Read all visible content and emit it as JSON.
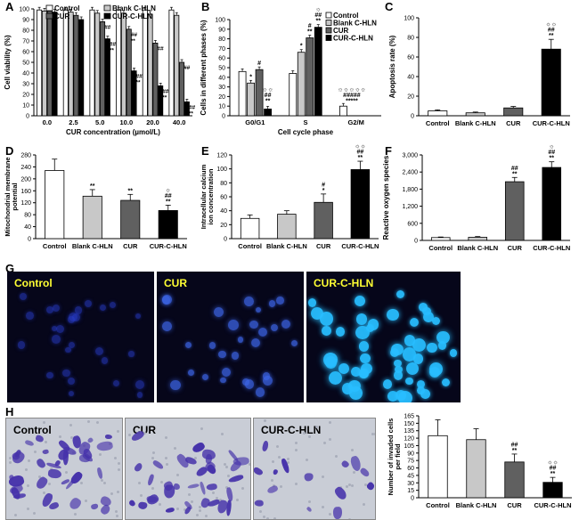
{
  "panels": {
    "A": "A",
    "B": "B",
    "C": "C",
    "D": "D",
    "E": "E",
    "F": "F",
    "G": "G",
    "H": "H"
  },
  "colors": {
    "white": "#ffffff",
    "light_gray": "#c8c8c8",
    "dark_gray": "#606060",
    "black": "#000000"
  },
  "chart_data": [
    {
      "id": "A",
      "type": "bar",
      "categories": [
        "0.0",
        "2.5",
        "5.0",
        "10.0",
        "20.0",
        "40.0"
      ],
      "xlabel": "CUR concentration (µmol/L)",
      "ylabel": "Cell viability (%)",
      "yticks": [
        "0",
        "10",
        "20",
        "30",
        "40",
        "50",
        "60",
        "70",
        "80",
        "90",
        "100"
      ],
      "ylim": [
        0,
        100
      ],
      "series": [
        {
          "name": "Control",
          "color": "#ffffff",
          "values": [
            99,
            99,
            99,
            99,
            99,
            99
          ]
        },
        {
          "name": "Blank C-HLN",
          "color": "#c8c8c8",
          "values": [
            98,
            97,
            96,
            96,
            95,
            94
          ]
        },
        {
          "name": "CUR",
          "color": "#606060",
          "values": [
            98,
            94,
            88,
            81,
            68,
            50
          ]
        },
        {
          "name": "CUR-C-HLN",
          "color": "#000000",
          "values": [
            97,
            90,
            72,
            42,
            28,
            13
          ]
        }
      ],
      "annotations": [
        {
          "category": 2,
          "series": 2,
          "text": "##"
        },
        {
          "category": 2,
          "series": 3,
          "text": "##\n**"
        },
        {
          "category": 3,
          "series": 2,
          "text": "##\n**"
        },
        {
          "category": 3,
          "series": 3,
          "text": "##\n**"
        },
        {
          "category": 4,
          "series": 2,
          "text": "##"
        },
        {
          "category": 4,
          "series": 3,
          "text": "##\n**"
        },
        {
          "category": 5,
          "series": 2,
          "text": "##"
        },
        {
          "category": 5,
          "series": 3,
          "text": "##\n**"
        }
      ]
    },
    {
      "id": "B",
      "type": "bar",
      "categories": [
        "G0/G1",
        "S",
        "G2/M"
      ],
      "xlabel": "Cell cycle phase",
      "ylabel": "Cells in different phases (%)",
      "yticks": [
        "0",
        "10",
        "20",
        "30",
        "40",
        "50",
        "60",
        "70",
        "80",
        "90",
        "100"
      ],
      "ylim": [
        0,
        100
      ],
      "series": [
        {
          "name": "Control",
          "color": "#ffffff",
          "values": [
            46,
            44,
            10
          ]
        },
        {
          "name": "Blank C-HLN",
          "color": "#c8c8c8",
          "values": [
            34,
            66,
            0
          ]
        },
        {
          "name": "CUR",
          "color": "#606060",
          "values": [
            48,
            81,
            0
          ]
        },
        {
          "name": "CUR-C-HLN",
          "color": "#000000",
          "values": [
            7,
            92,
            0
          ]
        }
      ],
      "annotations": [
        {
          "category": 0,
          "series": 1,
          "text": "*"
        },
        {
          "category": 0,
          "series": 2,
          "text": "#"
        },
        {
          "category": 0,
          "series": 3,
          "text": "☼☼\n##\n**"
        },
        {
          "category": 1,
          "series": 1,
          "text": "*"
        },
        {
          "category": 1,
          "series": 2,
          "text": "#\n**"
        },
        {
          "category": 1,
          "series": 3,
          "text": "☼\n##\n**"
        },
        {
          "category": 2,
          "series": 1,
          "text": "☼☼☼☼☼\n#####\n*****"
        }
      ]
    },
    {
      "id": "C",
      "type": "bar",
      "categories": [
        "Control",
        "Blank C-HLN",
        "CUR",
        "CUR-C-HLN"
      ],
      "ylabel": "Apoptosis rate (%)",
      "yticks": [
        "0",
        "20",
        "40",
        "60",
        "80",
        "100"
      ],
      "ylim": [
        0,
        100
      ],
      "values": [
        5,
        3,
        8,
        68
      ],
      "errors": [
        1,
        0.8,
        1.5,
        10
      ],
      "colors": [
        "#ffffff",
        "#c8c8c8",
        "#606060",
        "#000000"
      ],
      "annotations": [
        {
          "index": 3,
          "text": "☼☼\n##\n**"
        }
      ]
    },
    {
      "id": "D",
      "type": "bar",
      "categories": [
        "Control",
        "Blank C-HLN",
        "CUR",
        "CUR-C-HLN"
      ],
      "ylabel": "Mitochondrial membrane potential",
      "yticks": [
        "0",
        "40",
        "80",
        "120",
        "160",
        "200",
        "240",
        "280"
      ],
      "ylim": [
        0,
        280
      ],
      "values": [
        228,
        142,
        128,
        94
      ],
      "errors": [
        38,
        22,
        20,
        18
      ],
      "colors": [
        "#ffffff",
        "#c8c8c8",
        "#606060",
        "#000000"
      ],
      "annotations": [
        {
          "index": 1,
          "text": "**"
        },
        {
          "index": 2,
          "text": "**"
        },
        {
          "index": 3,
          "text": "☼\n##\n**"
        }
      ]
    },
    {
      "id": "E",
      "type": "bar",
      "categories": [
        "Control",
        "Blank C-HLN",
        "CUR",
        "CUR-C-HLN"
      ],
      "ylabel": "Intracellular calcium ion concentration",
      "yticks": [
        "0",
        "20",
        "40",
        "60",
        "80",
        "100",
        "120"
      ],
      "ylim": [
        0,
        120
      ],
      "values": [
        29,
        35,
        52,
        99
      ],
      "errors": [
        5,
        5,
        12,
        12
      ],
      "colors": [
        "#ffffff",
        "#c8c8c8",
        "#606060",
        "#000000"
      ],
      "annotations": [
        {
          "index": 2,
          "text": "#\n*"
        },
        {
          "index": 3,
          "text": "☼☼\n##\n**"
        }
      ]
    },
    {
      "id": "F",
      "type": "bar",
      "categories": [
        "Control",
        "Blank C-HLN",
        "CUR",
        "CUR-C-HLN"
      ],
      "ylabel": "Reactive oxygen species",
      "yticks": [
        "0",
        "600",
        "1,200",
        "1,800",
        "2,400",
        "3,000"
      ],
      "ylim": [
        0,
        3000
      ],
      "values": [
        100,
        110,
        2060,
        2560
      ],
      "errors": [
        20,
        25,
        150,
        200
      ],
      "colors": [
        "#ffffff",
        "#c8c8c8",
        "#606060",
        "#000000"
      ],
      "annotations": [
        {
          "index": 2,
          "text": "##\n**"
        },
        {
          "index": 3,
          "text": "☼\n##\n**"
        }
      ]
    },
    {
      "id": "H",
      "type": "bar",
      "categories": [
        "Control",
        "Blank C-HLN",
        "CUR",
        "CUR-C-HLN"
      ],
      "ylabel": "Number of invaded cells per field",
      "yticks": [
        "0",
        "15",
        "30",
        "45",
        "60",
        "75",
        "90",
        "105",
        "120",
        "135",
        "150",
        "165"
      ],
      "ylim": [
        0,
        165
      ],
      "values": [
        125,
        117,
        72,
        31
      ],
      "errors": [
        32,
        22,
        16,
        10
      ],
      "colors": [
        "#ffffff",
        "#c8c8c8",
        "#606060",
        "#000000"
      ],
      "annotations": [
        {
          "index": 2,
          "text": "##\n**"
        },
        {
          "index": 3,
          "text": "☼☼\n##\n**"
        }
      ]
    }
  ],
  "microscopy_G": [
    {
      "label": "Control",
      "intensity": "low"
    },
    {
      "label": "CUR",
      "intensity": "medium"
    },
    {
      "label": "CUR-C-HLN",
      "intensity": "high"
    }
  ],
  "microscopy_H": [
    {
      "label": "Control",
      "density": "high"
    },
    {
      "label": "CUR",
      "density": "high"
    },
    {
      "label": "CUR-C-HLN",
      "density": "low"
    }
  ]
}
